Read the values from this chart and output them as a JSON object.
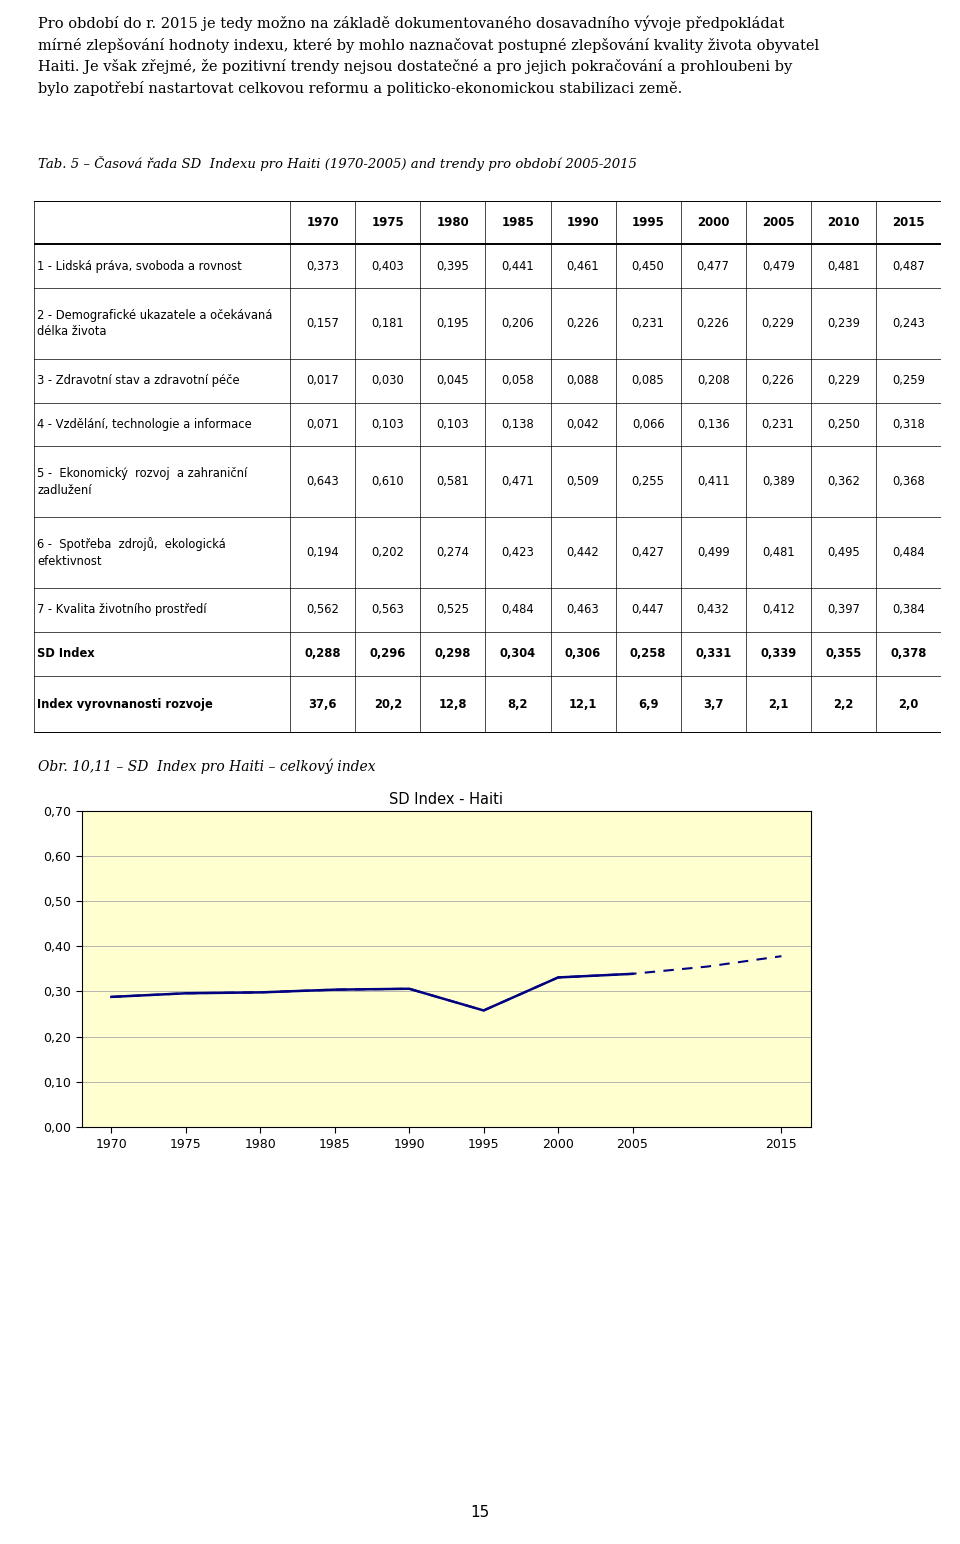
{
  "tab_title": "Tab. 5 – Časová řada SD  Indexu pro Haiti (1970-2005) and trendy pro období 2005-2015",
  "years": [
    1970,
    1975,
    1980,
    1985,
    1990,
    1995,
    2000,
    2005,
    2010,
    2015
  ],
  "table_data": [
    [
      0.373,
      0.403,
      0.395,
      0.441,
      0.461,
      0.45,
      0.477,
      0.479,
      0.481,
      0.487
    ],
    [
      0.157,
      0.181,
      0.195,
      0.206,
      0.226,
      0.231,
      0.226,
      0.229,
      0.239,
      0.243
    ],
    [
      0.017,
      0.03,
      0.045,
      0.058,
      0.088,
      0.085,
      0.208,
      0.226,
      0.229,
      0.259
    ],
    [
      0.071,
      0.103,
      0.103,
      0.138,
      0.042,
      0.066,
      0.136,
      0.231,
      0.25,
      0.318
    ],
    [
      0.643,
      0.61,
      0.581,
      0.471,
      0.509,
      0.255,
      0.411,
      0.389,
      0.362,
      0.368
    ],
    [
      0.194,
      0.202,
      0.274,
      0.423,
      0.442,
      0.427,
      0.499,
      0.481,
      0.495,
      0.484
    ],
    [
      0.562,
      0.563,
      0.525,
      0.484,
      0.463,
      0.447,
      0.432,
      0.412,
      0.397,
      0.384
    ],
    [
      0.288,
      0.296,
      0.298,
      0.304,
      0.306,
      0.258,
      0.331,
      0.339,
      0.355,
      0.378
    ],
    [
      37.6,
      20.2,
      12.8,
      8.2,
      12.1,
      6.9,
      3.7,
      2.1,
      2.2,
      2.0
    ]
  ],
  "row_labels": [
    "1 - Lidská práva, svoboda a rovnost",
    "2 - Demografické ukazatele a očekávaná\ndélka života",
    "3 - Zdravotní stav a zdravotní péče",
    "4 - Vzdělání, technologie a informace",
    "5 -  Ekonomický  rozvoj  a zahraniční\nzadlužení",
    "6 -  Spotřeba  zdrojů,  ekologická\nefektivnost",
    "7 - Kvalita životního prostředí",
    "SD Index",
    "Index vyrovnanosti rozvoje"
  ],
  "bold_rows": [
    7,
    8
  ],
  "chart_title": "SD Index - Haiti",
  "solid_line_x": [
    1970,
    1975,
    1980,
    1985,
    1990,
    1995,
    2000,
    2005
  ],
  "solid_line_y": [
    0.288,
    0.296,
    0.298,
    0.304,
    0.306,
    0.258,
    0.331,
    0.339
  ],
  "dashed_line_x": [
    1970,
    1975,
    1980,
    1985,
    1990,
    1995,
    2000,
    2005,
    2010,
    2015
  ],
  "dashed_line_y": [
    0.288,
    0.296,
    0.298,
    0.304,
    0.306,
    0.258,
    0.331,
    0.339,
    0.355,
    0.378
  ],
  "chart_bg_color": "#FFFFD0",
  "line_color": "#000080",
  "yticks": [
    0.0,
    0.1,
    0.2,
    0.3,
    0.4,
    0.5,
    0.6,
    0.7
  ],
  "fig_caption": "Obr. 10,11 – SD  Index pro Haiti – celkový index",
  "page_number": "15",
  "top_text_line1": "Pro období do r. 2015 je tedy možno na základě dokumentovaného dosavadního vývoje předpokládat",
  "top_text_line2": "mírné zlepšování hodnoty indexu, které by mohlo naznačovat postupné zlepšování kvality života obyvatel",
  "top_text_line3": "Haiti. Je však zřejmé, že pozitivní trendy nejsou dostatečné a pro jejich pokračování a prohloubeni by",
  "top_text_line4": "bylo zapotřebí nastartovat celkovou reformu a politicko-ekonomickou stabilizaci země."
}
